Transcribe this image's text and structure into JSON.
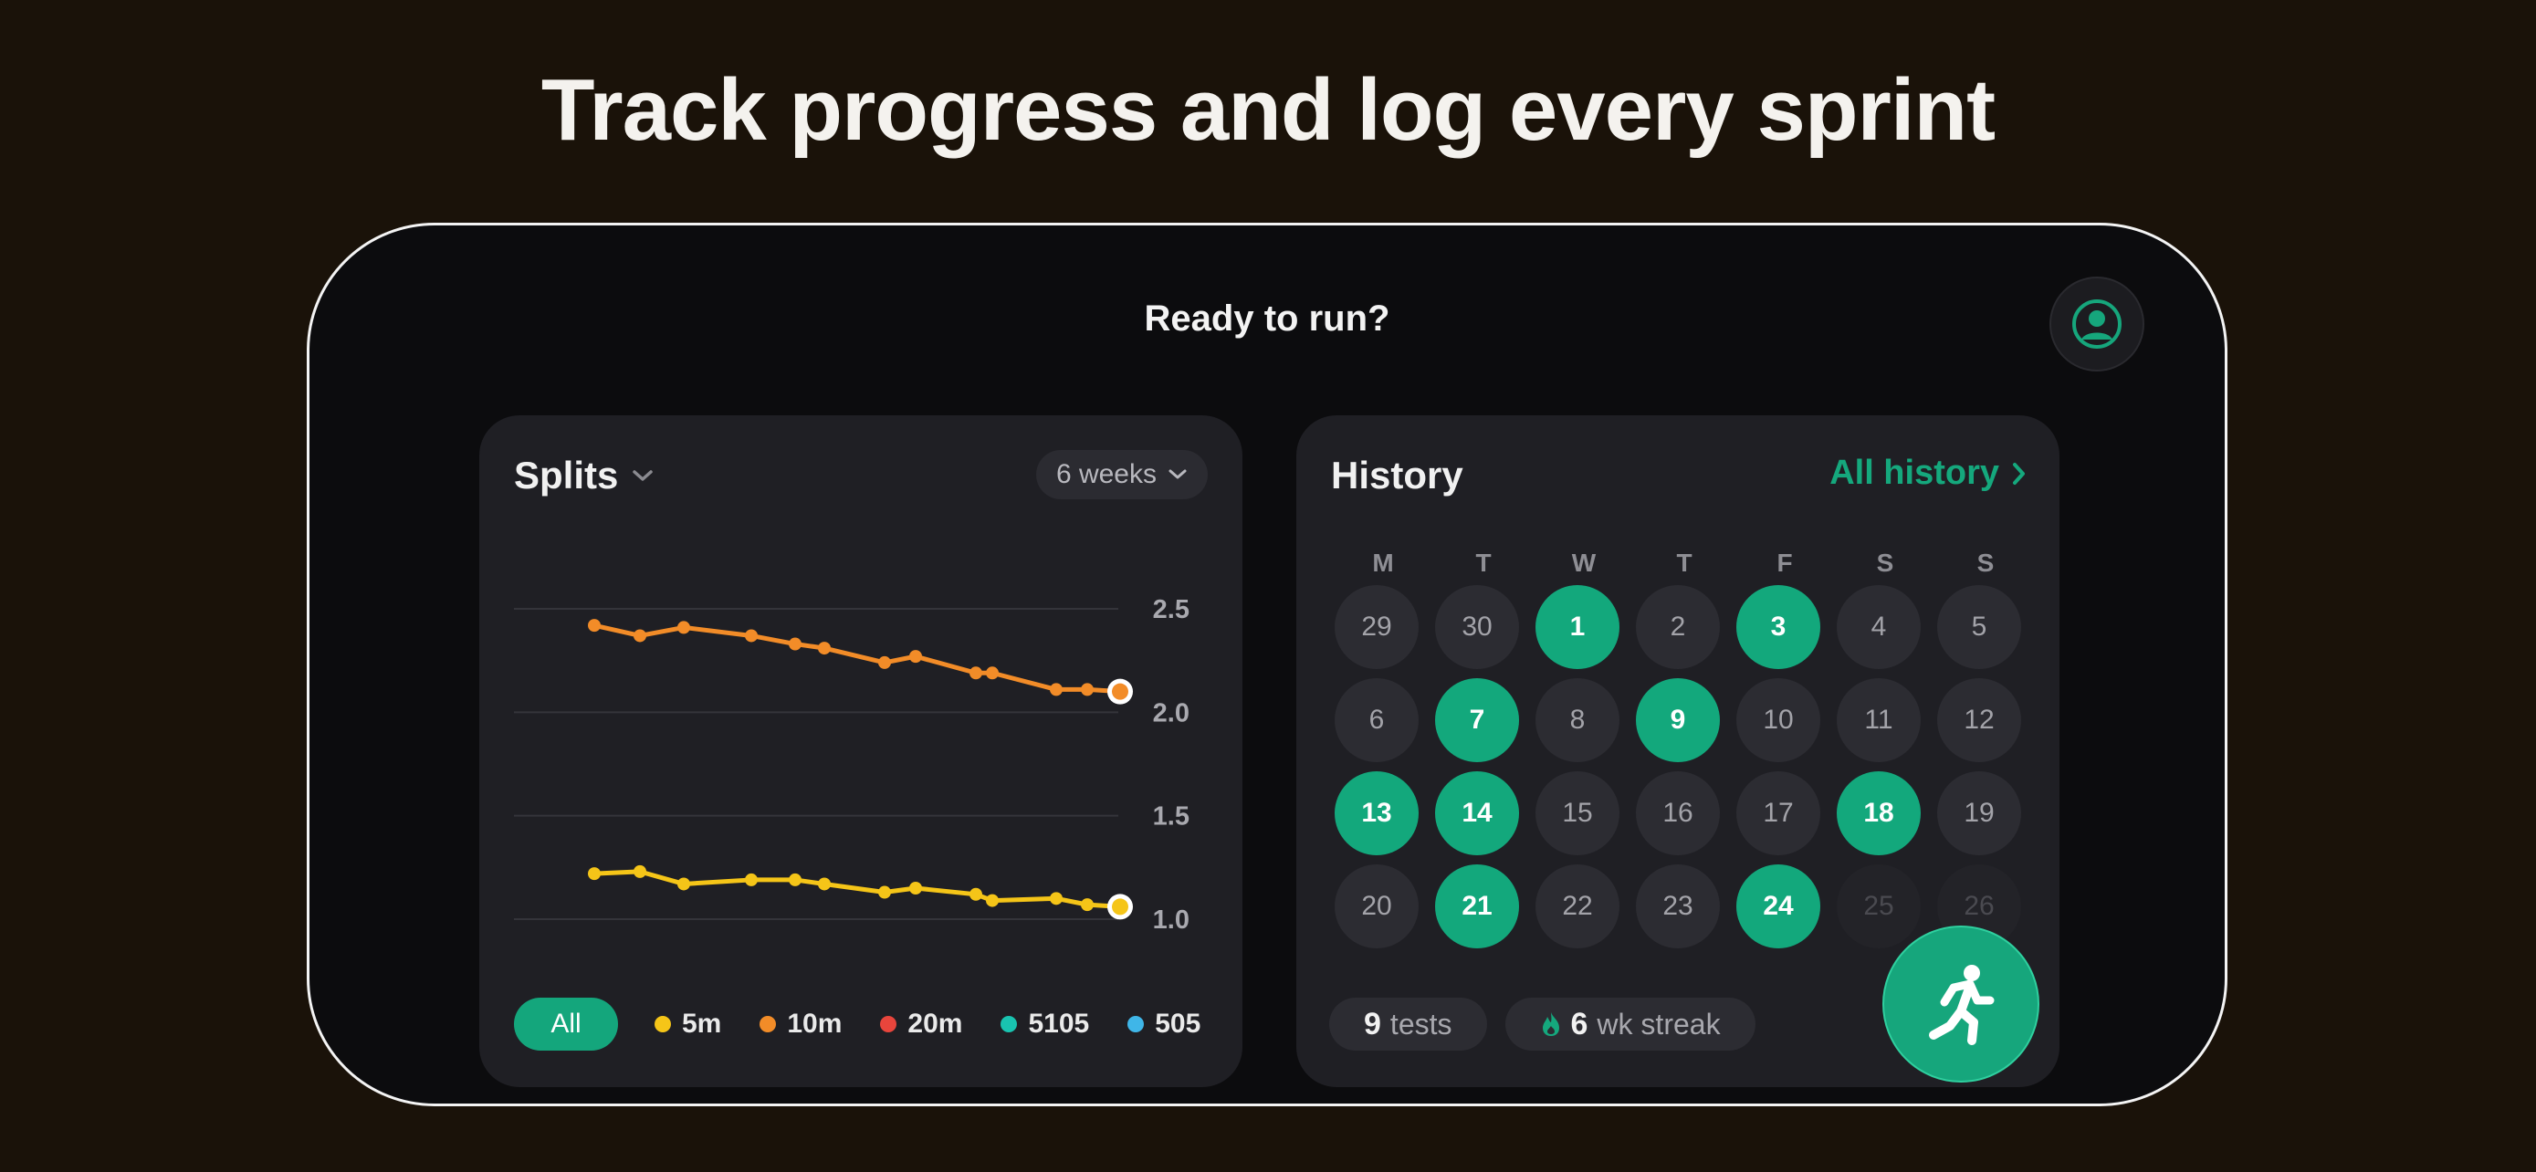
{
  "headline": "Track progress and log every sprint",
  "header": {
    "prompt": "Ready to run?",
    "profile_icon": "person-circle-icon"
  },
  "splits": {
    "title": "Splits",
    "range_label": "6 weeks",
    "filter_all": "All",
    "legend": [
      {
        "label": "5m",
        "color": "#f5c518"
      },
      {
        "label": "10m",
        "color": "#f28c28"
      },
      {
        "label": "20m",
        "color": "#e8453c"
      },
      {
        "label": "5105",
        "color": "#19c3b0"
      },
      {
        "label": "505",
        "color": "#3fb6e8"
      }
    ]
  },
  "chart_data": {
    "type": "line",
    "title": "",
    "xlabel": "",
    "ylabel": "",
    "ylim": [
      1.0,
      2.5
    ],
    "yticks": [
      "2.5",
      "2.0",
      "1.5",
      "1.0"
    ],
    "y_axis_position": "right",
    "grid": true,
    "series": [
      {
        "name": "10m",
        "color": "#f28c28",
        "x": [
          1,
          2,
          3,
          4,
          5,
          6,
          7,
          8,
          9,
          10,
          11,
          12,
          13
        ],
        "values": [
          2.42,
          2.37,
          2.41,
          2.37,
          2.33,
          2.31,
          2.24,
          2.27,
          2.19,
          2.19,
          2.11,
          2.11,
          2.1
        ]
      },
      {
        "name": "5m",
        "color": "#f5c518",
        "x": [
          1,
          2,
          3,
          4,
          5,
          6,
          7,
          8,
          9,
          10,
          11,
          12,
          13
        ],
        "values": [
          1.22,
          1.23,
          1.17,
          1.19,
          1.19,
          1.17,
          1.13,
          1.15,
          1.12,
          1.09,
          1.1,
          1.07,
          1.06
        ]
      }
    ]
  },
  "history": {
    "title": "History",
    "all_link": "All history",
    "weekdays": [
      "M",
      "T",
      "W",
      "T",
      "F",
      "S",
      "S"
    ],
    "days": [
      {
        "label": "29",
        "state": "normal"
      },
      {
        "label": "30",
        "state": "normal"
      },
      {
        "label": "1",
        "state": "active"
      },
      {
        "label": "2",
        "state": "normal"
      },
      {
        "label": "3",
        "state": "active"
      },
      {
        "label": "4",
        "state": "normal"
      },
      {
        "label": "5",
        "state": "normal"
      },
      {
        "label": "6",
        "state": "normal"
      },
      {
        "label": "7",
        "state": "active"
      },
      {
        "label": "8",
        "state": "normal"
      },
      {
        "label": "9",
        "state": "active"
      },
      {
        "label": "10",
        "state": "normal"
      },
      {
        "label": "11",
        "state": "normal"
      },
      {
        "label": "12",
        "state": "normal"
      },
      {
        "label": "13",
        "state": "active"
      },
      {
        "label": "14",
        "state": "active"
      },
      {
        "label": "15",
        "state": "normal"
      },
      {
        "label": "16",
        "state": "normal"
      },
      {
        "label": "17",
        "state": "normal"
      },
      {
        "label": "18",
        "state": "active"
      },
      {
        "label": "19",
        "state": "normal"
      },
      {
        "label": "20",
        "state": "normal"
      },
      {
        "label": "21",
        "state": "active"
      },
      {
        "label": "22",
        "state": "normal"
      },
      {
        "label": "23",
        "state": "normal"
      },
      {
        "label": "24",
        "state": "active"
      },
      {
        "label": "25",
        "state": "future"
      },
      {
        "label": "26",
        "state": "future"
      }
    ],
    "tests_count": "9",
    "tests_label": "tests",
    "streak_count": "6",
    "streak_label": "wk streak",
    "accent": "#14a67c"
  },
  "fab": {
    "icon": "running-person-icon"
  }
}
